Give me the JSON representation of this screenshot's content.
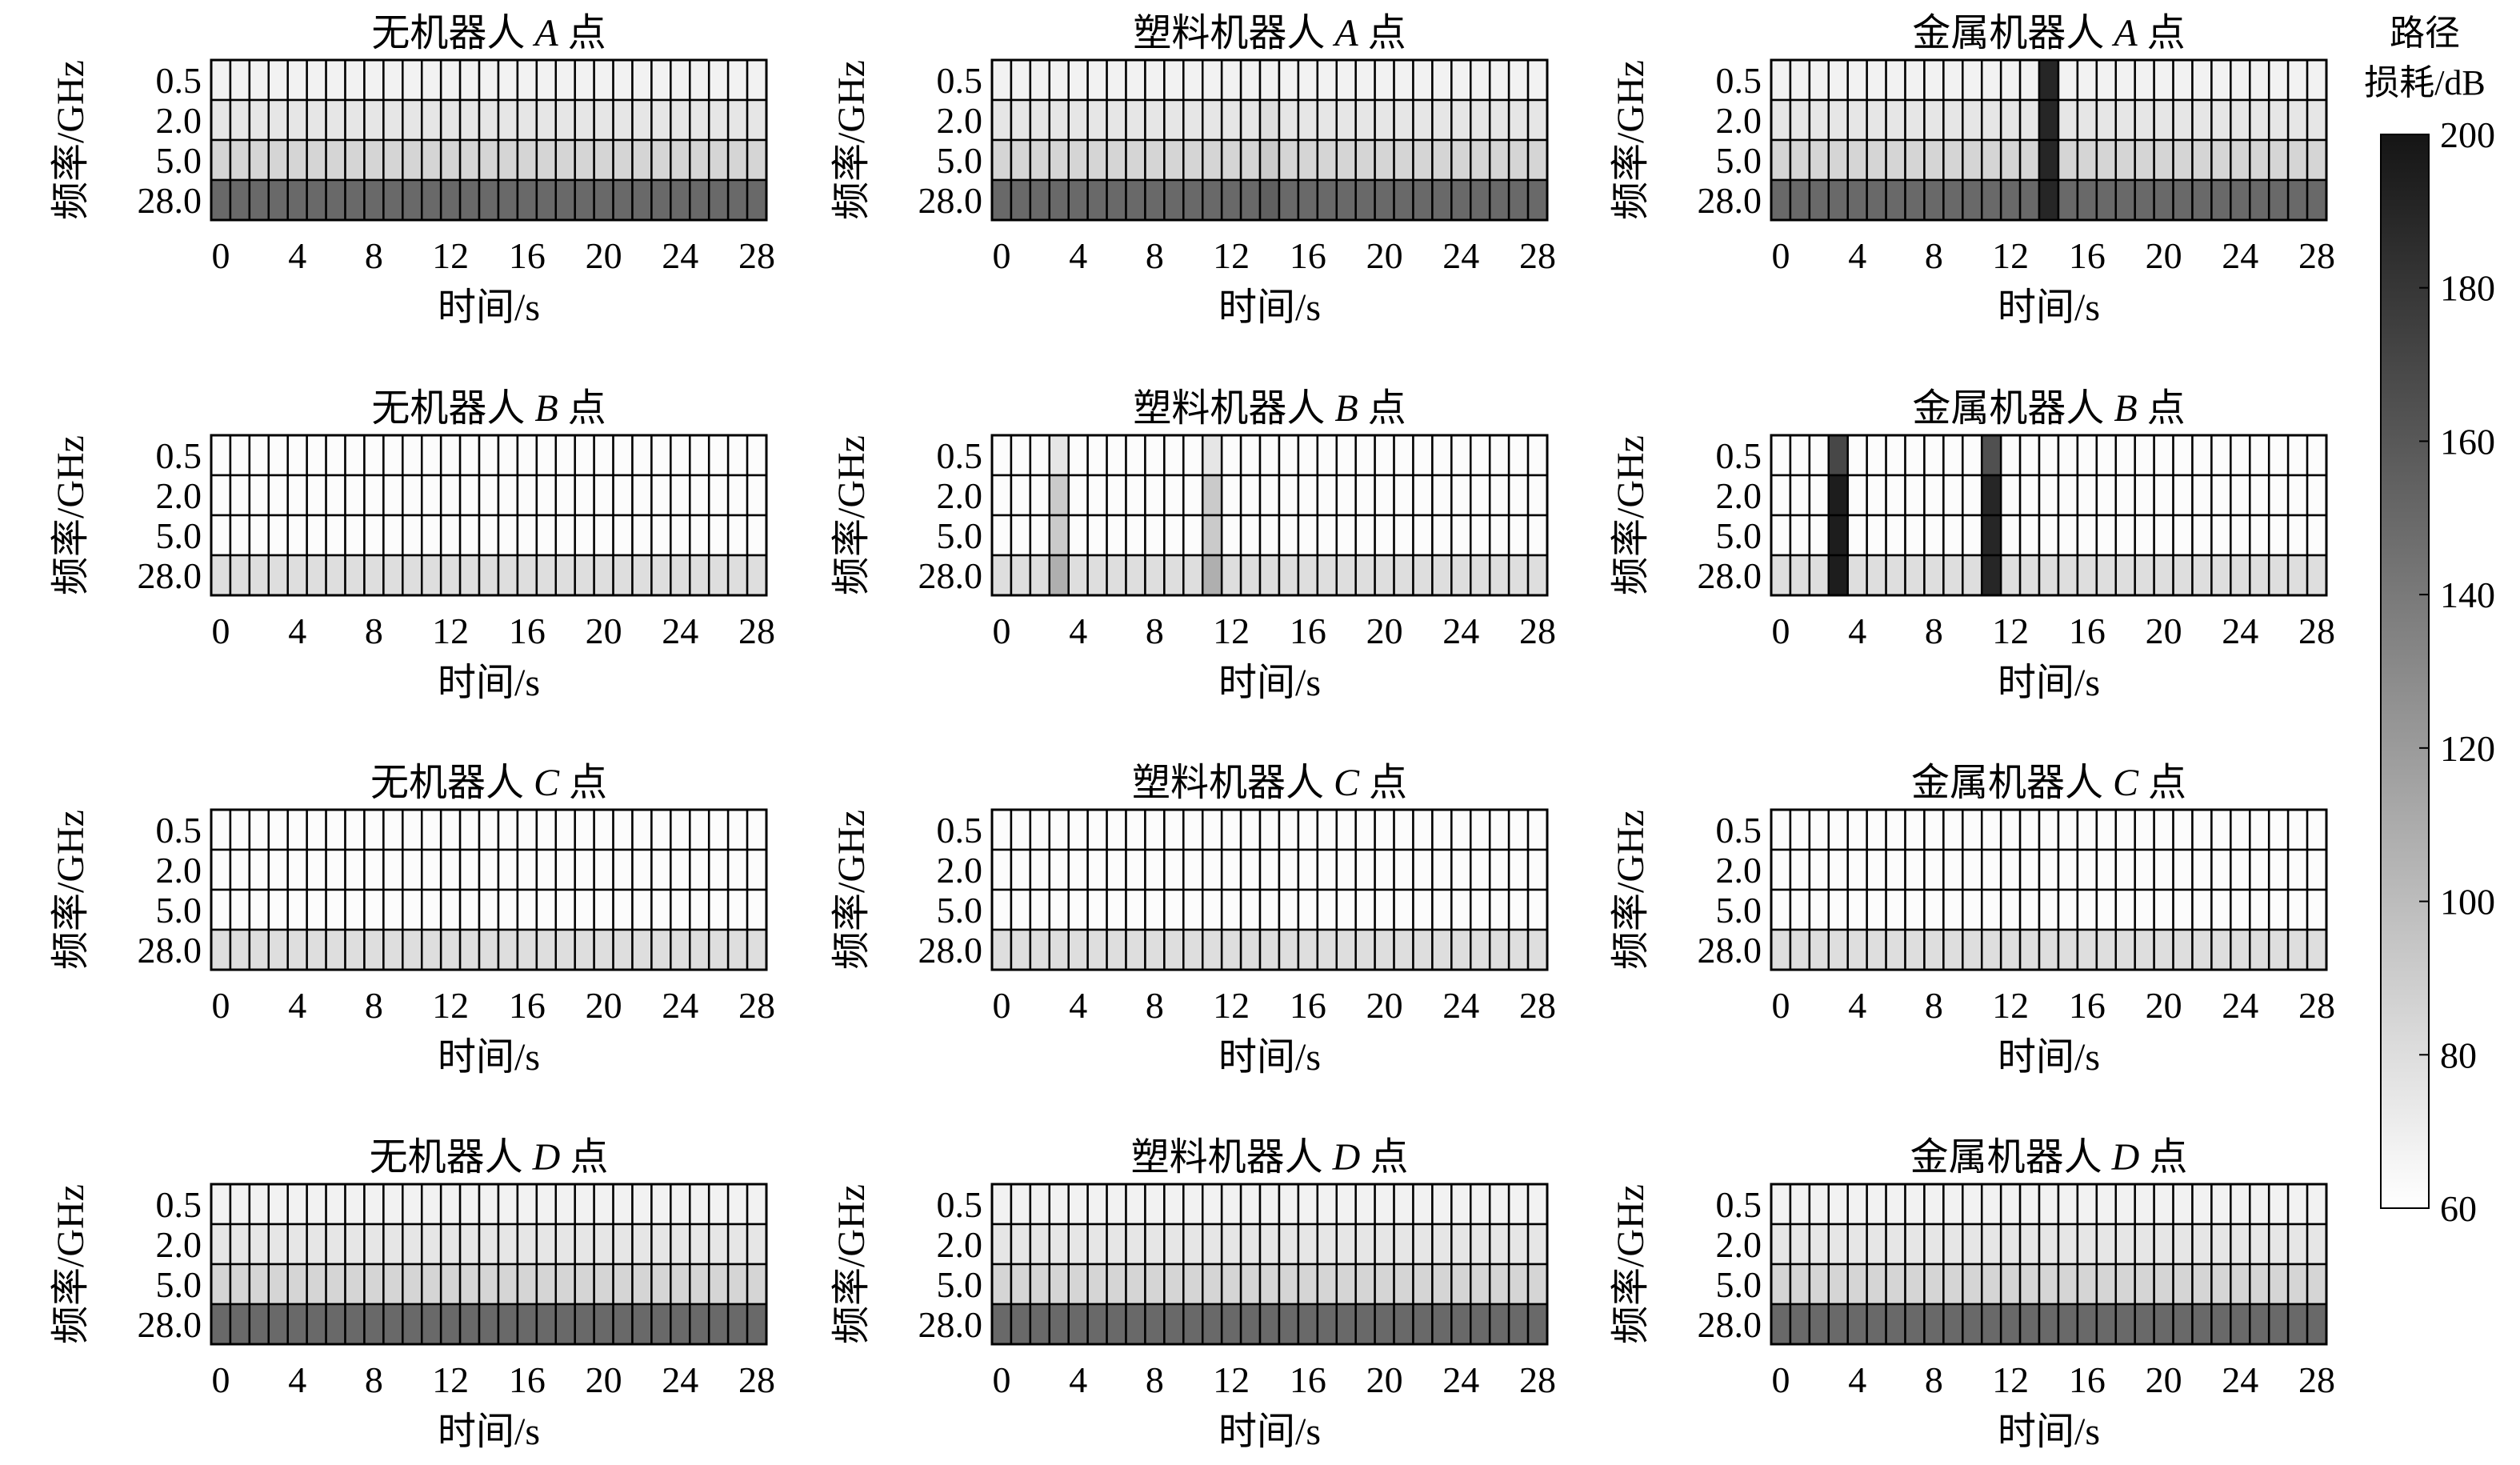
{
  "chart_data": {
    "type": "heatmap",
    "time_label": "时间/s",
    "freq_label": "频率/GHz",
    "frequencies": [
      "0.5",
      "2.0",
      "5.0",
      "28.0"
    ],
    "time_ticks": [
      "0",
      "4",
      "8",
      "12",
      "16",
      "20",
      "24",
      "28"
    ],
    "time_range": [
      0,
      29
    ],
    "colorbar": {
      "title_line1": "路径",
      "title_line2": "损耗/dB",
      "range": [
        60,
        200
      ],
      "ticks": [
        "200",
        "180",
        "160",
        "140",
        "120",
        "100",
        "80",
        "60"
      ],
      "colormap": "gray_reversed"
    },
    "panels": [
      {
        "title": "无机器人 A 点",
        "prefix": "无机器人",
        "point": "A",
        "suffix": "点",
        "base": [
          68,
          75,
          85,
          150
        ],
        "events": []
      },
      {
        "title": "塑料机器人 A 点",
        "prefix": "塑料机器人",
        "point": "A",
        "suffix": "点",
        "base": [
          68,
          75,
          85,
          150
        ],
        "events": [
          {
            "t": 14,
            "values": [
              68,
              80,
              92,
              155
            ]
          }
        ]
      },
      {
        "title": "金属机器人 A 点",
        "prefix": "金属机器人",
        "point": "A",
        "suffix": "点",
        "base": [
          68,
          75,
          85,
          150
        ],
        "events": [
          {
            "t": 14,
            "values": [
              190,
              190,
              190,
              190
            ]
          }
        ]
      },
      {
        "title": "无机器人 B 点",
        "prefix": "无机器人",
        "point": "B",
        "suffix": "点",
        "base": [
          62,
          62,
          62,
          80
        ],
        "events": []
      },
      {
        "title": "塑料机器人 B 点",
        "prefix": "塑料机器人",
        "point": "B",
        "suffix": "点",
        "base": [
          62,
          62,
          62,
          80
        ],
        "events": [
          {
            "t": 3,
            "values": [
              75,
              92,
              92,
              108
            ]
          },
          {
            "t": 11,
            "values": [
              75,
              92,
              92,
              108
            ]
          }
        ]
      },
      {
        "title": "金属机器人 B 点",
        "prefix": "金属机器人",
        "point": "B",
        "suffix": "点",
        "base": [
          62,
          62,
          62,
          80
        ],
        "events": [
          {
            "t": 3,
            "values": [
              170,
              195,
              195,
              195
            ]
          },
          {
            "t": 11,
            "values": [
              165,
              190,
              190,
              190
            ]
          }
        ]
      },
      {
        "title": "无机器人 C 点",
        "prefix": "无机器人",
        "point": "C",
        "suffix": "点",
        "base": [
          62,
          62,
          62,
          80
        ],
        "events": []
      },
      {
        "title": "塑料机器人 C 点",
        "prefix": "塑料机器人",
        "point": "C",
        "suffix": "点",
        "base": [
          62,
          62,
          62,
          80
        ],
        "events": []
      },
      {
        "title": "金属机器人 C 点",
        "prefix": "金属机器人",
        "point": "C",
        "suffix": "点",
        "base": [
          62,
          62,
          62,
          80
        ],
        "events": []
      },
      {
        "title": "无机器人 D 点",
        "prefix": "无机器人",
        "point": "D",
        "suffix": "点",
        "base": [
          68,
          75,
          85,
          150
        ],
        "events": []
      },
      {
        "title": "塑料机器人 D 点",
        "prefix": "塑料机器人",
        "point": "D",
        "suffix": "点",
        "base": [
          68,
          75,
          85,
          150
        ],
        "events": []
      },
      {
        "title": "金属机器人 D 点",
        "prefix": "金属机器人",
        "point": "D",
        "suffix": "点",
        "base": [
          68,
          75,
          85,
          150
        ],
        "events": []
      }
    ]
  }
}
